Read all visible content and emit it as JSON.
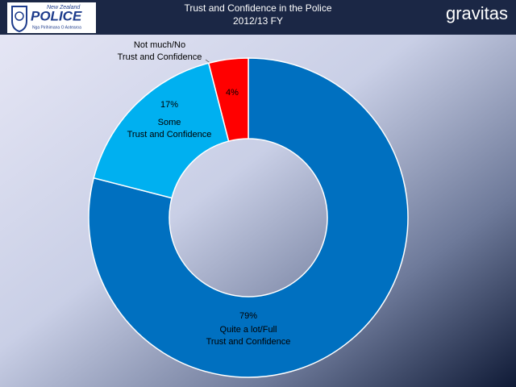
{
  "logo": {
    "top": "New Zealand",
    "name": "POLICE",
    "motto": "Nga Pirihimana O Aotearoa"
  },
  "brand": "gravitas",
  "chart_data": {
    "type": "donut",
    "title": "Trust and Confidence in the Police",
    "subtitle": "2012/13 FY",
    "categories": [
      [
        "Quite a lot/Full",
        "Trust and Confidence"
      ],
      [
        "Some",
        "Trust and Confidence"
      ],
      [
        "Not much/No",
        "Trust and Confidence"
      ]
    ],
    "values": [
      79,
      17,
      4
    ],
    "value_labels": [
      "79%",
      "17%",
      "4%"
    ],
    "colors": [
      "#0070c0",
      "#00b0f0",
      "#ff0000"
    ]
  }
}
